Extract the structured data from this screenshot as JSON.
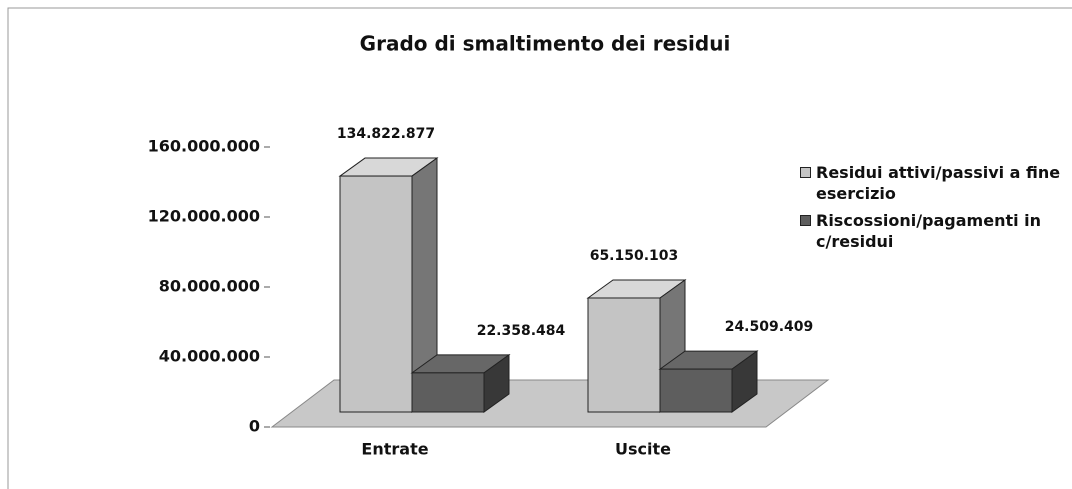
{
  "chart_data": {
    "type": "bar3d",
    "title": "Grado di smaltimento dei residui",
    "categories": [
      "Entrate",
      "Uscite"
    ],
    "series": [
      {
        "name": "Residui attivi/passivi a fine esercizio",
        "color": "#c4c4c4",
        "values": [
          134822877,
          65150103
        ],
        "value_labels": [
          "134.822.877",
          "65.150.103"
        ]
      },
      {
        "name": "Riscossioni/pagamenti in c/residui",
        "color": "#5e5e5e",
        "values": [
          22358484,
          24509409
        ],
        "value_labels": [
          "22.358.484",
          "24.509.409"
        ]
      }
    ],
    "ylim": [
      0,
      160000000
    ],
    "yticks": [
      0,
      {
        "value": 40000000,
        "label": "40.000.000"
      },
      {
        "value": 80000000,
        "label": "80.000.000"
      },
      {
        "value": 120000000,
        "label": "120.000.000"
      },
      {
        "value": 160000000,
        "label": "160.000.000"
      }
    ],
    "legend": "right"
  }
}
